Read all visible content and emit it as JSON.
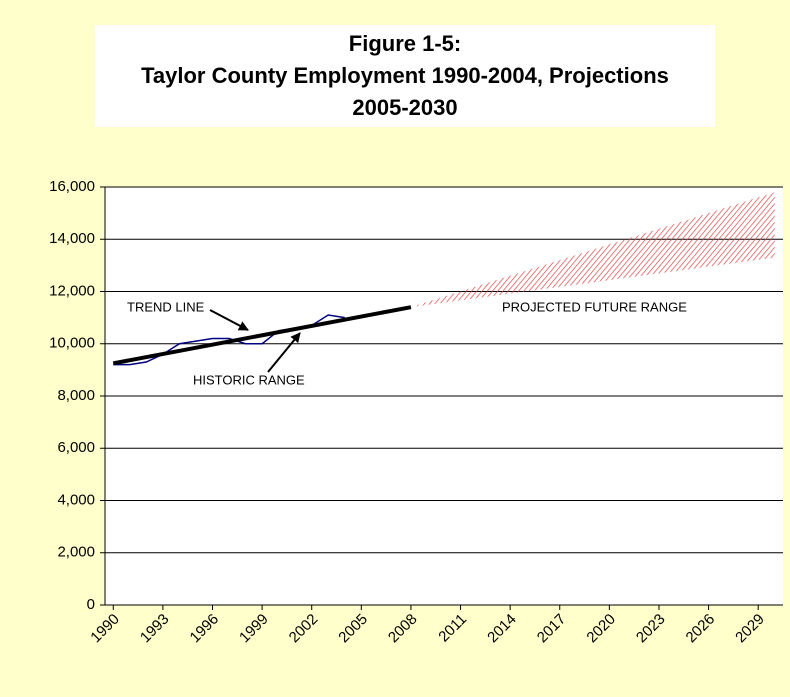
{
  "chart_data": {
    "type": "line",
    "title": [
      "Figure 1-5:",
      "Taylor County Employment 1990-2004, Projections",
      "2005-2030"
    ],
    "xlim": [
      1989.5,
      2030.5
    ],
    "xticks": [
      1990,
      1993,
      1996,
      1999,
      2002,
      2005,
      2008,
      2011,
      2014,
      2017,
      2020,
      2023,
      2026,
      2029
    ],
    "ylim": [
      0,
      16000
    ],
    "yticks": [
      0,
      {
        "value": 2000,
        "label": "2,000"
      },
      {
        "value": 4000,
        "label": "4,000"
      },
      {
        "value": 6000,
        "label": "6,000"
      },
      {
        "value": 8000,
        "label": "8,000"
      },
      {
        "value": 10000,
        "label": "10,000"
      },
      {
        "value": 12000,
        "label": "12,000"
      },
      {
        "value": 14000,
        "label": "14,000"
      },
      {
        "value": 16000,
        "label": "16,000"
      }
    ],
    "grid": true,
    "series": [
      {
        "color": "#000080",
        "x": [
          1990,
          1991,
          1992,
          1993,
          1994,
          1995,
          1996,
          1997,
          1998,
          1999,
          2000,
          2001,
          2002,
          2003,
          2004
        ],
        "values": [
          9200,
          9200,
          9300,
          9600,
          10000,
          10100,
          10200,
          10200,
          10000,
          10000,
          10500,
          10600,
          10700,
          11100,
          11000
        ]
      },
      {
        "color": "#000000",
        "x": [
          1990,
          2008
        ],
        "values": [
          9250,
          11400
        ]
      }
    ],
    "projection": {
      "color": "#dd4444",
      "x": [
        2008,
        2030
      ],
      "low": [
        11400,
        13300
      ],
      "high": [
        11400,
        15800
      ]
    },
    "annotations": [
      "TREND LINE",
      "HISTORIC RANGE",
      "PROJECTED FUTURE RANGE"
    ]
  }
}
